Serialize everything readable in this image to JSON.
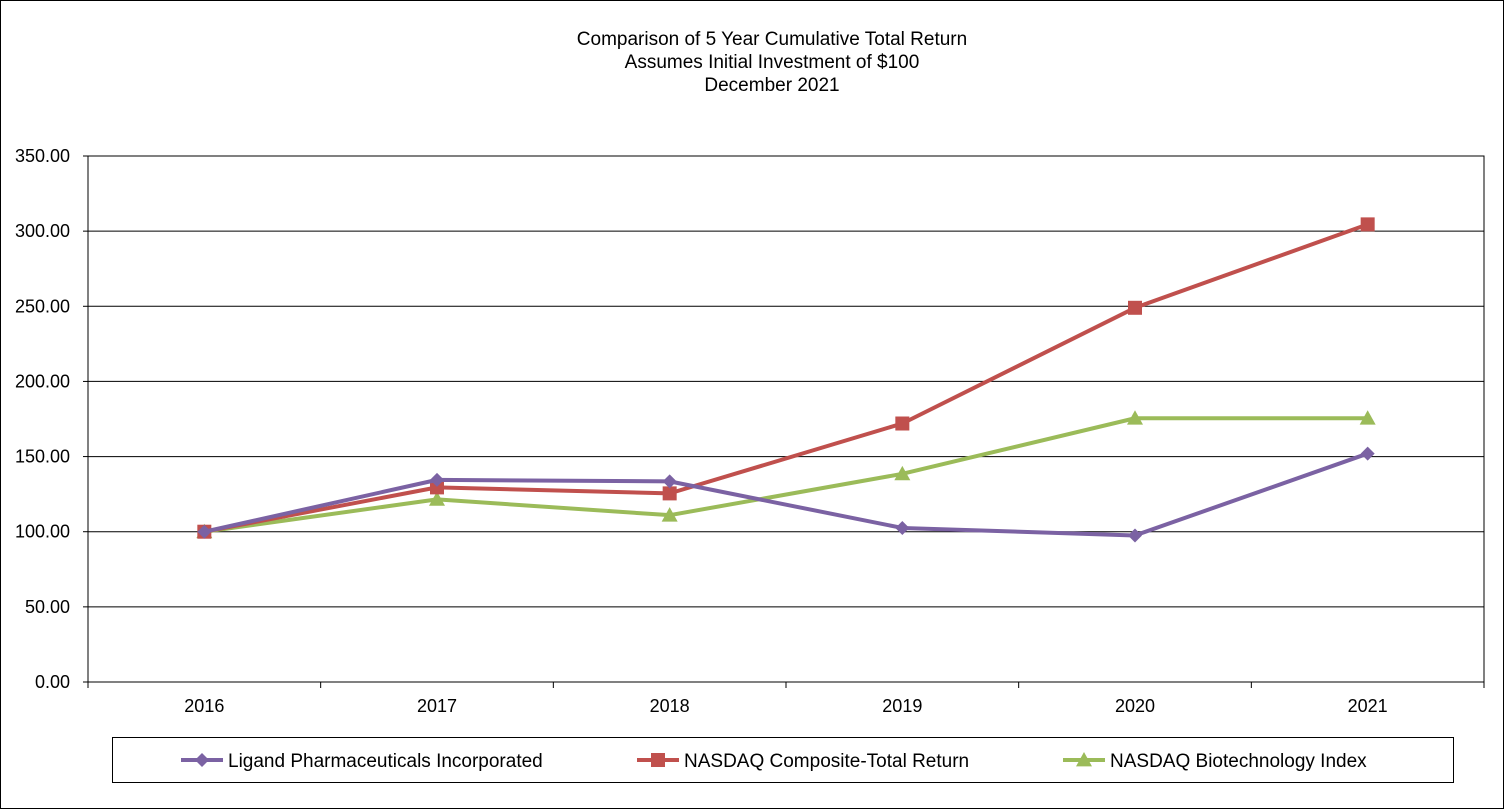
{
  "titles": {
    "line1": "Comparison of 5 Year Cumulative Total Return",
    "line2": "Assumes Initial Investment of $100",
    "line3": "December 2021"
  },
  "chart_data": {
    "type": "line",
    "x": [
      "2016",
      "2017",
      "2018",
      "2019",
      "2020",
      "2021"
    ],
    "ylim": [
      0,
      350
    ],
    "yticks": [
      "0.00",
      "50.00",
      "100.00",
      "150.00",
      "200.00",
      "250.00",
      "300.00",
      "350.00"
    ],
    "grid": true,
    "legend_position": "bottom",
    "series": [
      {
        "name": "Ligand Pharmaceuticals Incorporated",
        "color": "#7b62a3",
        "marker": "diamond",
        "values": [
          100,
          134.5,
          133.5,
          102.5,
          97.5,
          152
        ]
      },
      {
        "name": "NASDAQ Composite-Total Return",
        "color": "#c0504d",
        "marker": "square",
        "values": [
          100,
          129.5,
          125.5,
          172,
          249,
          304.5
        ]
      },
      {
        "name": "NASDAQ Biotechnology Index",
        "color": "#9bbb59",
        "marker": "triangle",
        "values": [
          100,
          121.5,
          111,
          138.5,
          175.5,
          175.5
        ]
      }
    ]
  }
}
